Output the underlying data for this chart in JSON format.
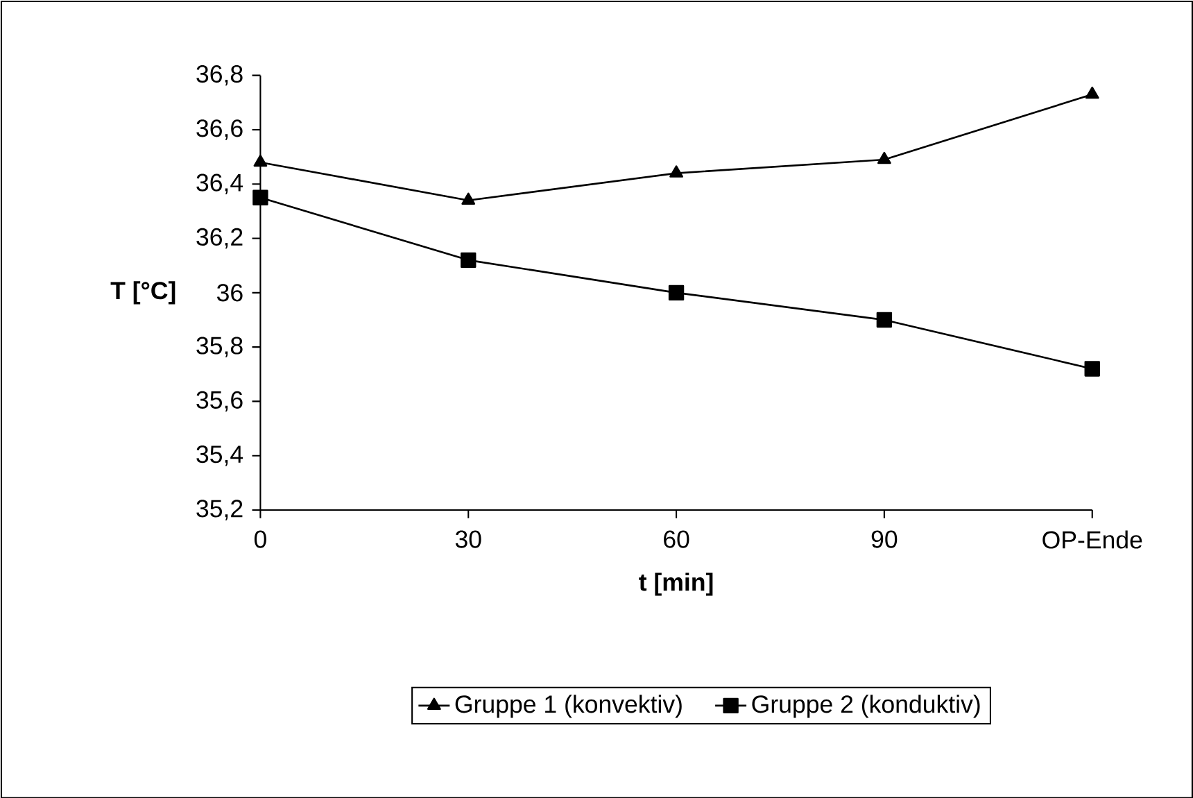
{
  "chart_data": {
    "type": "line",
    "xlabel": "t [min]",
    "ylabel": "T [°C]",
    "categories": [
      "0",
      "30",
      "60",
      "90",
      "OP-Ende"
    ],
    "series": [
      {
        "name": "Gruppe 1 (konvektiv)",
        "color": "#000000",
        "marker": "triangle",
        "values": [
          36.48,
          36.34,
          36.44,
          36.49,
          36.73
        ]
      },
      {
        "name": "Gruppe 2 (konduktiv)",
        "color": "#000000",
        "marker": "square",
        "values": [
          36.35,
          36.12,
          36.0,
          35.9,
          35.72
        ]
      }
    ],
    "ylim": [
      35.2,
      36.8
    ],
    "yticks": [
      {
        "value": 35.2,
        "label": "35,2"
      },
      {
        "value": 35.4,
        "label": "35,4"
      },
      {
        "value": 35.6,
        "label": "35,6"
      },
      {
        "value": 35.8,
        "label": "35,8"
      },
      {
        "value": 36,
        "label": "36"
      },
      {
        "value": 36.2,
        "label": "36,2"
      },
      {
        "value": 36.4,
        "label": "36,4"
      },
      {
        "value": 36.6,
        "label": "36,6"
      },
      {
        "value": 36.8,
        "label": "36,8"
      }
    ],
    "grid": false,
    "legend": "bottom",
    "line_style": "solid"
  }
}
